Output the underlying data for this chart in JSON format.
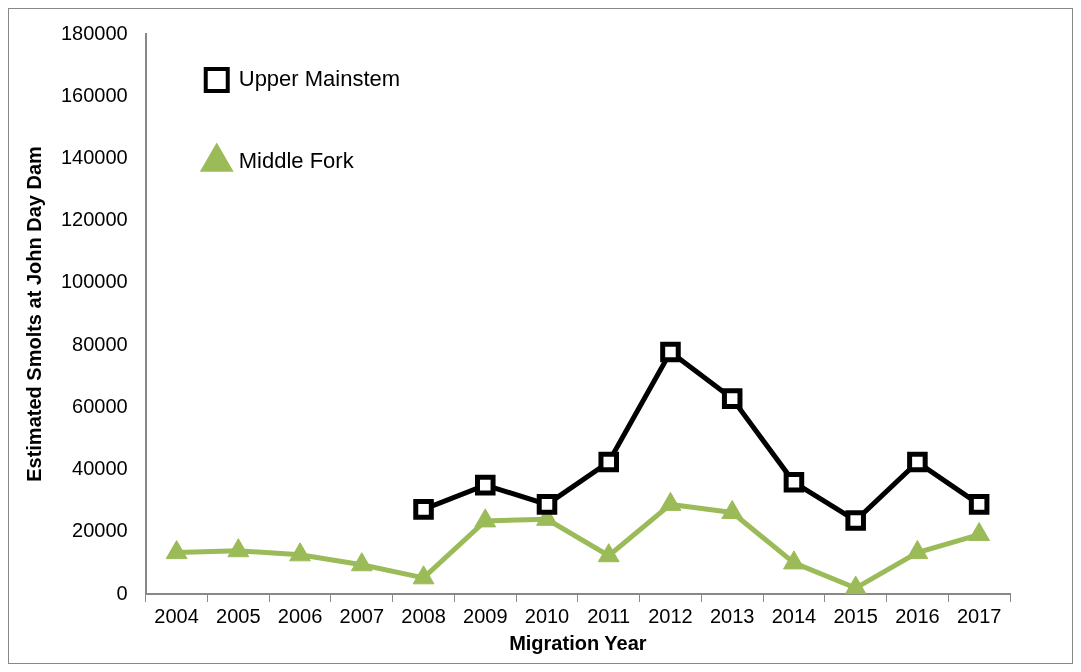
{
  "chart_data": {
    "type": "line",
    "xlabel": "Migration Year",
    "ylabel": "Estimated Smolts at John Day Dam",
    "categories": [
      "2004",
      "2005",
      "2006",
      "2007",
      "2008",
      "2009",
      "2010",
      "2011",
      "2012",
      "2013",
      "2014",
      "2015",
      "2016",
      "2017"
    ],
    "series": [
      {
        "name": "Upper Mainstem",
        "color": "#000000",
        "marker": "square",
        "values": [
          null,
          null,
          null,
          null,
          27200,
          35000,
          28800,
          42400,
          77800,
          62800,
          35900,
          23600,
          42400,
          28800
        ]
      },
      {
        "name": "Middle Fork",
        "color": "#9bbb59",
        "marker": "triangle",
        "values": [
          13300,
          13900,
          12600,
          9400,
          5200,
          23500,
          24000,
          12300,
          28800,
          26200,
          10000,
          1900,
          13300,
          19100
        ]
      }
    ],
    "ylim": [
      0,
      180000
    ],
    "yticks": [
      0,
      20000,
      40000,
      60000,
      80000,
      100000,
      120000,
      140000,
      160000,
      180000
    ],
    "grid": false,
    "legend": "top left"
  }
}
